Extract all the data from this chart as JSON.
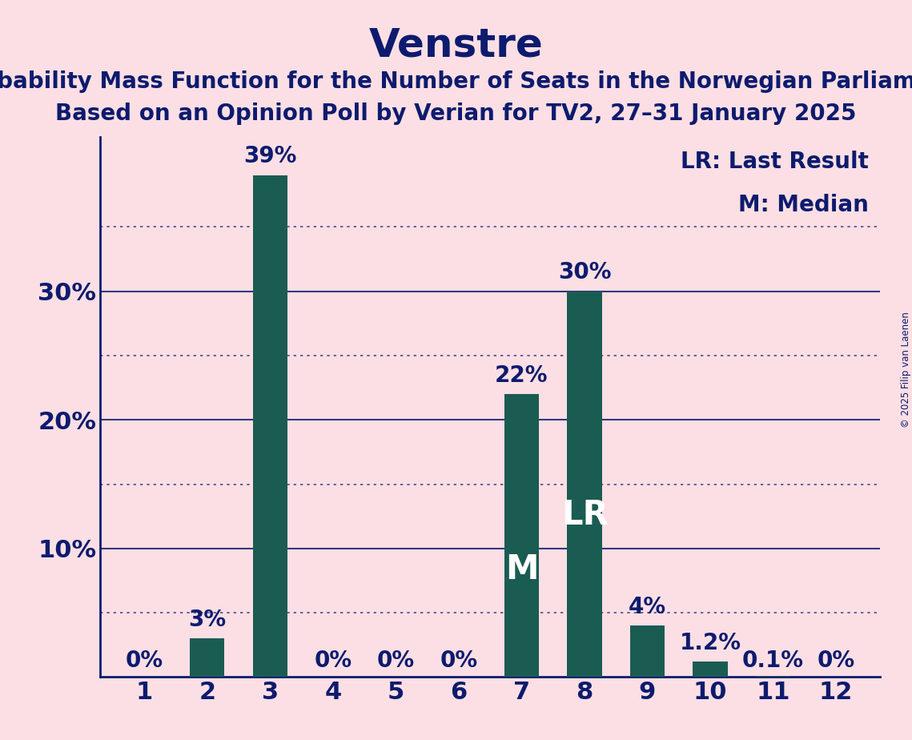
{
  "title": "Venstre",
  "subtitle1": "Probability Mass Function for the Number of Seats in the Norwegian Parliament",
  "subtitle2": "Based on an Opinion Poll by Verian for TV2, 27–31 January 2025",
  "copyright": "© 2025 Filip van Laenen",
  "categories": [
    1,
    2,
    3,
    4,
    5,
    6,
    7,
    8,
    9,
    10,
    11,
    12
  ],
  "values": [
    0.0,
    3.0,
    39.0,
    0.0,
    0.0,
    0.0,
    22.0,
    30.0,
    4.0,
    1.2,
    0.1,
    0.0
  ],
  "bar_labels": [
    "0%",
    "3%",
    "39%",
    "0%",
    "0%",
    "0%",
    "22%",
    "30%",
    "4%",
    "1.2%",
    "0.1%",
    "0%"
  ],
  "bar_color": "#1A5C52",
  "background_color": "#FCDFE4",
  "text_color": "#0D1B6E",
  "ylim": [
    0,
    42
  ],
  "yticks": [
    10,
    20,
    30
  ],
  "ytick_labels": [
    "10%",
    "20%",
    "30%"
  ],
  "dotted_lines": [
    5,
    15,
    25,
    35
  ],
  "solid_lines": [
    10,
    20,
    30
  ],
  "legend_text": [
    "LR: Last Result",
    "M: Median"
  ],
  "median_bar": 7,
  "lr_bar": 8,
  "title_fontsize": 36,
  "subtitle_fontsize": 20,
  "axis_label_fontsize": 22,
  "bar_label_fontsize": 20,
  "inside_label_fontsize": 30,
  "legend_fontsize": 20
}
